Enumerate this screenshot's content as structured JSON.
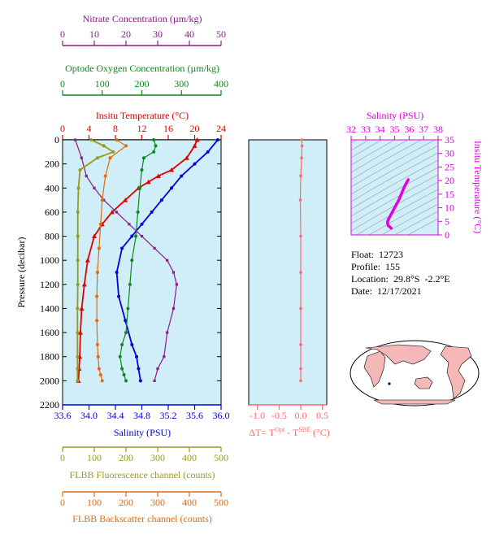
{
  "colors": {
    "nitrate": "#8b1a8b",
    "oxygen": "#0a8a1a",
    "temperature": "#e00000",
    "salinity": "#0000e0",
    "fluorescence": "#9a9a1a",
    "backscatter": "#e06a10",
    "delta_t": "#ff6a6a",
    "ts_magenta": "#e000e0",
    "plot_bg": "#cfeef7",
    "land": "#f4b8b8"
  },
  "axes": {
    "nitrate": {
      "label": "Nitrate Concentration (µm/kg)",
      "ticks": [
        "0",
        "10",
        "20",
        "30",
        "40",
        "50"
      ],
      "range": [
        0,
        50
      ]
    },
    "oxygen": {
      "label": "Optode Oxygen Concentration (µm/kg)",
      "ticks": [
        "0",
        "100",
        "200",
        "300",
        "400"
      ],
      "range": [
        0,
        400
      ]
    },
    "temperature": {
      "label": "Insitu Temperature (°C)",
      "ticks": [
        "0",
        "4",
        "8",
        "12",
        "16",
        "20",
        "24"
      ],
      "range": [
        0,
        24
      ]
    },
    "salinity": {
      "label": "Salinity (PSU)",
      "ticks": [
        "33.6",
        "34.0",
        "34.4",
        "34.8",
        "35.2",
        "35.6",
        "36.0"
      ],
      "range": [
        33.6,
        36.0
      ]
    },
    "pressure": {
      "label": "Pressure (decibar)",
      "ticks": [
        "0",
        "200",
        "400",
        "600",
        "800",
        "1000",
        "1200",
        "1400",
        "1600",
        "1800",
        "2000",
        "2200"
      ],
      "range": [
        0,
        2200
      ]
    },
    "fluorescence": {
      "label": "FLBB Fluorescence channel (counts)",
      "ticks": [
        "0",
        "100",
        "200",
        "300",
        "400",
        "500"
      ],
      "range": [
        0,
        500
      ]
    },
    "backscatter": {
      "label": "FLBB Backscatter channel (counts)",
      "ticks": [
        "0",
        "100",
        "200",
        "300",
        "400",
        "500"
      ],
      "range": [
        0,
        500
      ]
    },
    "delta_t": {
      "label": "ΔT= T",
      "sup1": "Opt",
      "mid": " - T",
      "sup2": "SBE",
      "unit": " (°C)",
      "ticks": [
        "-1.0",
        "-0.5",
        "0.0",
        "0.5"
      ],
      "range": [
        -1.2,
        0.6
      ]
    },
    "ts_salinity": {
      "label": "Salinity (PSU)",
      "ticks": [
        "32",
        "33",
        "34",
        "35",
        "36",
        "37",
        "38"
      ],
      "range": [
        32,
        38
      ]
    },
    "ts_temperature": {
      "label": "Insitu Temperature (°C)",
      "ticks": [
        "0",
        "5",
        "10",
        "15",
        "20",
        "25",
        "30",
        "35"
      ],
      "range": [
        0,
        35
      ]
    }
  },
  "info": {
    "float": "Float:  12723",
    "profile": "Profile:  155",
    "location": "Location:  29.8°S  -2.2°E",
    "date": "Date:  12/17/2021"
  },
  "chart_data": [
    {
      "type": "line",
      "title": "",
      "ylabel": "Pressure (decibar)",
      "ylim": [
        2200,
        0
      ],
      "series": [
        {
          "name": "Temperature",
          "axis": "temperature",
          "x": [
            20.4,
            20.0,
            18.8,
            16.5,
            14.5,
            13.0,
            11.5,
            9.5,
            7.5,
            6.0,
            4.8,
            3.8,
            3.3,
            2.9,
            2.7,
            2.6,
            2.5,
            2.4
          ],
          "y": [
            0,
            50,
            150,
            250,
            300,
            350,
            400,
            500,
            600,
            700,
            800,
            1000,
            1200,
            1400,
            1600,
            1800,
            1900,
            2000
          ]
        },
        {
          "name": "Salinity",
          "axis": "salinity",
          "x": [
            35.95,
            35.8,
            35.6,
            35.4,
            35.25,
            35.1,
            34.95,
            34.8,
            34.65,
            34.5,
            34.42,
            34.45,
            34.55,
            34.65,
            34.72,
            34.75,
            34.78
          ],
          "y": [
            0,
            100,
            200,
            300,
            400,
            500,
            600,
            700,
            800,
            900,
            1100,
            1300,
            1500,
            1700,
            1800,
            1900,
            2000
          ]
        },
        {
          "name": "Oxygen",
          "axis": "oxygen",
          "x": [
            230,
            235,
            230,
            205,
            200,
            195,
            190,
            185,
            175,
            170,
            165,
            160,
            150,
            145,
            150,
            155,
            160
          ],
          "y": [
            0,
            50,
            100,
            150,
            250,
            400,
            600,
            800,
            1000,
            1200,
            1400,
            1600,
            1700,
            1800,
            1900,
            1950,
            2000
          ]
        },
        {
          "name": "Nitrate",
          "axis": "nitrate",
          "x": [
            4,
            6,
            7.5,
            10,
            13,
            17,
            21,
            25,
            29,
            33,
            35,
            36,
            35,
            33,
            32,
            30,
            29
          ],
          "y": [
            0,
            150,
            300,
            400,
            500,
            600,
            700,
            800,
            900,
            1000,
            1100,
            1200,
            1400,
            1600,
            1800,
            1900,
            2000
          ]
        },
        {
          "name": "Fluorescence",
          "axis": "fluorescence",
          "x": [
            90,
            130,
            160,
            110,
            55,
            50,
            48,
            48,
            48,
            48,
            47,
            47,
            47,
            47,
            47
          ],
          "y": [
            0,
            50,
            100,
            150,
            250,
            400,
            600,
            800,
            1000,
            1200,
            1400,
            1600,
            1800,
            1900,
            2000
          ]
        },
        {
          "name": "Backscatter",
          "axis": "backscatter",
          "x": [
            170,
            200,
            150,
            135,
            125,
            120,
            115,
            110,
            108,
            108,
            110,
            112,
            115,
            120,
            125
          ],
          "y": [
            0,
            50,
            150,
            300,
            500,
            700,
            900,
            1100,
            1300,
            1500,
            1700,
            1800,
            1900,
            1950,
            2000
          ]
        }
      ]
    },
    {
      "type": "line",
      "title": "",
      "xlabel": "ΔT",
      "ylim": [
        2200,
        0
      ],
      "series": [
        {
          "name": "ΔT",
          "x": [
            0.02,
            0.03,
            0.02,
            0.0,
            -0.01,
            0.0,
            0.0,
            0.0,
            0.0,
            0.0,
            0.0
          ],
          "y": [
            0,
            50,
            150,
            300,
            500,
            800,
            1100,
            1400,
            1700,
            1900,
            2000
          ]
        }
      ]
    },
    {
      "type": "line",
      "title": "",
      "xlabel": "Salinity (PSU)",
      "ylabel": "Insitu Temperature (°C)",
      "xlim": [
        32,
        38
      ],
      "ylim": [
        0,
        35
      ],
      "series": [
        {
          "name": "T-S",
          "x": [
            35.95,
            35.85,
            35.7,
            35.5,
            35.3,
            35.1,
            34.9,
            34.7,
            34.55,
            34.5,
            34.55,
            34.7,
            34.78
          ],
          "y": [
            20.4,
            19.5,
            18.0,
            15.5,
            13.0,
            11.0,
            9.0,
            7.0,
            5.5,
            4.5,
            3.5,
            2.8,
            2.4
          ]
        }
      ]
    }
  ]
}
